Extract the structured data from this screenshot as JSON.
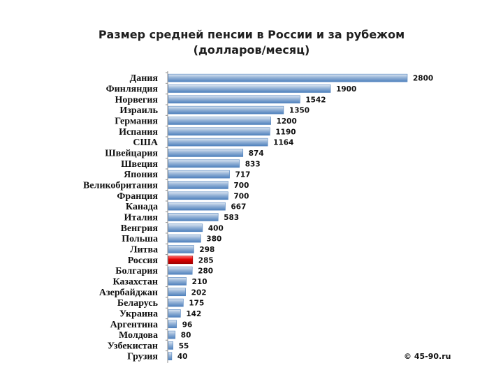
{
  "chart_data": {
    "type": "bar",
    "orientation": "horizontal",
    "title": "Размер средней пенсии в России и за рубежом",
    "subtitle": "(долларов/месяц)",
    "categories": [
      "Дания",
      "Финляндия",
      "Норвегия",
      "Израиль",
      "Германия",
      "Испания",
      "США",
      "Швейцария",
      "Швеция",
      "Япония",
      "Великобритания",
      "Франция",
      "Канада",
      "Италия",
      "Венгрия",
      "Польша",
      "Литва",
      "Россия",
      "Болгария",
      "Казахстан",
      "Азербайджан",
      "Беларусь",
      "Украина",
      "Аргентина",
      "Молдова",
      "Узбекистан",
      "Грузия"
    ],
    "values": [
      2800,
      1900,
      1542,
      1350,
      1200,
      1190,
      1164,
      874,
      833,
      717,
      700,
      700,
      667,
      583,
      400,
      380,
      298,
      285,
      280,
      210,
      202,
      175,
      142,
      96,
      80,
      55,
      40
    ],
    "value_labels": [
      "2800",
      "1900",
      "1542",
      "1350",
      "1200",
      "1190",
      "1164",
      "874",
      "833",
      "717",
      "700",
      "700",
      "667",
      "583",
      "400",
      "380",
      "298",
      "285",
      "280",
      "210",
      "202",
      "175",
      "142",
      "96",
      "80",
      "55",
      "40"
    ],
    "highlight_category": "Россия",
    "colors": {
      "bar": "#95b3d7",
      "bar_light": "#dce6f2",
      "bar_dark": "#4f81bd",
      "highlight": "#e00000",
      "highlight_light": "#ff7070",
      "highlight_dark": "#a00000"
    },
    "data_labels": true,
    "legend": "none",
    "grid": false
  },
  "copyright": "© 45-90.ru"
}
